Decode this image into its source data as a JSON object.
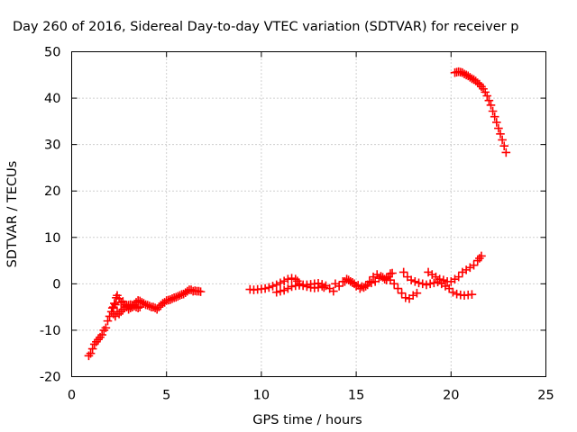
{
  "chart_data": {
    "type": "scatter",
    "title": "Day 260 of 2016, Sidereal Day-to-day VTEC variation (SDTVAR) for receiver p",
    "xlabel": "GPS time / hours",
    "ylabel": "SDTVAR / TECUs",
    "xlim": [
      0,
      25
    ],
    "ylim": [
      -20,
      50
    ],
    "x_ticks": [
      "0",
      "5",
      "10",
      "15",
      "20",
      "25"
    ],
    "y_ticks": [
      "-20",
      "-10",
      "0",
      "10",
      "20",
      "30",
      "40",
      "50"
    ],
    "grid": true,
    "marker": "plus",
    "color": "#ff0000",
    "series": [
      {
        "points": [
          [
            0.9,
            -15.5
          ],
          [
            1.0,
            -15.0
          ],
          [
            1.1,
            -14.0
          ],
          [
            1.2,
            -13.0
          ],
          [
            1.3,
            -12.5
          ],
          [
            1.4,
            -12.0
          ],
          [
            1.5,
            -11.5
          ],
          [
            1.6,
            -11.0
          ],
          [
            1.7,
            -10.0
          ],
          [
            1.8,
            -9.5
          ],
          [
            1.9,
            -8.0
          ],
          [
            2.0,
            -7.0
          ],
          [
            2.1,
            -6.0
          ],
          [
            2.15,
            -5.2
          ],
          [
            2.2,
            -5.0
          ],
          [
            2.25,
            -4.2
          ],
          [
            2.3,
            -4.5
          ],
          [
            2.35,
            -3.0
          ],
          [
            2.4,
            -2.5
          ],
          [
            2.5,
            -3.2
          ],
          [
            2.6,
            -4.0
          ],
          [
            2.7,
            -3.8
          ],
          [
            2.8,
            -4.5
          ],
          [
            2.9,
            -5.0
          ],
          [
            3.0,
            -5.5
          ],
          [
            3.1,
            -5.2
          ],
          [
            3.2,
            -5.0
          ],
          [
            3.3,
            -4.5
          ],
          [
            3.4,
            -4.0
          ],
          [
            3.5,
            -3.6
          ],
          [
            3.6,
            -3.7
          ],
          [
            3.7,
            -4.0
          ],
          [
            3.8,
            -4.2
          ],
          [
            3.9,
            -4.5
          ],
          [
            4.0,
            -4.6
          ],
          [
            4.1,
            -4.8
          ],
          [
            4.2,
            -5.0
          ],
          [
            4.3,
            -5.0
          ],
          [
            4.4,
            -5.2
          ],
          [
            4.5,
            -5.5
          ],
          [
            4.6,
            -5.0
          ],
          [
            4.7,
            -4.6
          ],
          [
            4.8,
            -4.2
          ],
          [
            4.9,
            -4.0
          ],
          [
            5.0,
            -3.6
          ],
          [
            5.1,
            -3.5
          ],
          [
            5.2,
            -3.4
          ],
          [
            5.3,
            -3.2
          ],
          [
            5.4,
            -3.0
          ],
          [
            5.5,
            -2.9
          ],
          [
            5.6,
            -2.7
          ],
          [
            5.7,
            -2.5
          ],
          [
            5.8,
            -2.3
          ],
          [
            5.9,
            -2.2
          ],
          [
            6.0,
            -1.9
          ],
          [
            6.1,
            -1.6
          ],
          [
            6.2,
            -1.3
          ],
          [
            6.3,
            -1.3
          ],
          [
            6.4,
            -1.6
          ],
          [
            6.5,
            -1.5
          ],
          [
            6.6,
            -1.6
          ],
          [
            6.7,
            -1.6
          ],
          [
            6.8,
            -1.7
          ]
        ]
      },
      {
        "points": [
          [
            2.2,
            -6.5
          ],
          [
            2.3,
            -7.0
          ],
          [
            2.4,
            -6.0
          ],
          [
            2.5,
            -6.5
          ],
          [
            2.6,
            -6.0
          ],
          [
            2.7,
            -5.5
          ],
          [
            2.8,
            -5.0
          ],
          [
            2.9,
            -4.8
          ],
          [
            3.0,
            -4.6
          ],
          [
            3.1,
            -4.5
          ],
          [
            3.2,
            -4.6
          ],
          [
            3.3,
            -4.8
          ],
          [
            3.4,
            -5.0
          ],
          [
            3.5,
            -5.2
          ],
          [
            3.6,
            -5.0
          ]
        ]
      },
      {
        "points": [
          [
            9.4,
            -1.2
          ],
          [
            9.6,
            -1.3
          ],
          [
            9.8,
            -1.2
          ],
          [
            10.0,
            -1.1
          ],
          [
            10.2,
            -1.0
          ],
          [
            10.4,
            -0.8
          ],
          [
            10.6,
            -0.5
          ],
          [
            10.8,
            -0.2
          ],
          [
            11.0,
            0.2
          ],
          [
            11.2,
            0.6
          ],
          [
            11.4,
            1.0
          ],
          [
            11.6,
            1.2
          ],
          [
            11.8,
            1.0
          ],
          [
            11.9,
            0.6
          ],
          [
            12.0,
            0.0
          ],
          [
            12.2,
            -0.4
          ],
          [
            12.4,
            -0.6
          ],
          [
            12.6,
            -0.8
          ],
          [
            12.8,
            -0.9
          ],
          [
            13.0,
            -0.8
          ],
          [
            13.2,
            -0.5
          ],
          [
            13.3,
            -0.8
          ]
        ]
      },
      {
        "points": [
          [
            10.8,
            -1.8
          ],
          [
            11.0,
            -1.6
          ],
          [
            11.2,
            -1.4
          ],
          [
            11.4,
            -1.0
          ],
          [
            11.6,
            -0.6
          ],
          [
            11.8,
            -0.4
          ],
          [
            12.0,
            -0.3
          ],
          [
            12.2,
            -0.2
          ],
          [
            12.4,
            -0.2
          ],
          [
            12.6,
            -0.1
          ],
          [
            12.8,
            0.0
          ],
          [
            13.0,
            0.1
          ],
          [
            13.2,
            -0.1
          ],
          [
            13.4,
            -0.4
          ],
          [
            13.6,
            -1.0
          ],
          [
            13.8,
            -1.6
          ]
        ]
      },
      {
        "points": [
          [
            13.9,
            0.0
          ],
          [
            14.1,
            -0.5
          ],
          [
            14.3,
            0.5
          ],
          [
            14.5,
            1.0
          ],
          [
            14.7,
            0.5
          ],
          [
            14.9,
            0.0
          ],
          [
            15.1,
            -0.3
          ],
          [
            15.3,
            -0.6
          ],
          [
            15.5,
            -0.5
          ],
          [
            15.7,
            0.5
          ],
          [
            15.9,
            1.5
          ],
          [
            16.1,
            2.0
          ],
          [
            16.3,
            1.6
          ],
          [
            16.5,
            1.0
          ],
          [
            16.6,
            0.8
          ],
          [
            16.7,
            1.5
          ],
          [
            16.8,
            2.2
          ],
          [
            16.9,
            2.3
          ]
        ]
      },
      {
        "points": [
          [
            14.4,
            0.5
          ],
          [
            14.6,
            0.8
          ],
          [
            14.8,
            0.3
          ],
          [
            15.0,
            -0.5
          ],
          [
            15.2,
            -1.0
          ],
          [
            15.4,
            -0.8
          ],
          [
            15.6,
            -0.2
          ],
          [
            15.8,
            0.2
          ],
          [
            16.0,
            0.5
          ],
          [
            16.2,
            1.2
          ],
          [
            16.4,
            1.4
          ],
          [
            16.6,
            1.2
          ],
          [
            16.8,
            0.8
          ],
          [
            17.0,
            0.0
          ],
          [
            17.2,
            -1.0
          ],
          [
            17.4,
            -2.0
          ],
          [
            17.6,
            -3.0
          ],
          [
            17.8,
            -3.2
          ],
          [
            18.0,
            -2.5
          ],
          [
            18.2,
            -2.0
          ]
        ]
      },
      {
        "points": [
          [
            17.5,
            2.5
          ],
          [
            17.7,
            1.5
          ],
          [
            17.9,
            0.8
          ],
          [
            18.1,
            0.5
          ],
          [
            18.3,
            0.2
          ],
          [
            18.5,
            0.0
          ],
          [
            18.7,
            -0.2
          ],
          [
            18.9,
            0.0
          ],
          [
            19.1,
            0.2
          ],
          [
            19.3,
            0.4
          ],
          [
            19.5,
            0.0
          ],
          [
            19.7,
            -0.5
          ],
          [
            19.9,
            -1.0
          ],
          [
            20.1,
            -1.8
          ],
          [
            20.3,
            -2.2
          ],
          [
            20.5,
            -2.4
          ],
          [
            20.7,
            -2.5
          ],
          [
            20.9,
            -2.4
          ],
          [
            21.1,
            -2.3
          ]
        ]
      },
      {
        "points": [
          [
            18.8,
            2.5
          ],
          [
            19.0,
            2.0
          ],
          [
            19.2,
            1.5
          ],
          [
            19.4,
            1.0
          ],
          [
            19.6,
            0.8
          ],
          [
            19.8,
            0.5
          ],
          [
            20.0,
            0.5
          ],
          [
            20.2,
            1.0
          ],
          [
            20.4,
            1.5
          ],
          [
            20.6,
            2.5
          ],
          [
            20.8,
            3.0
          ],
          [
            21.0,
            3.5
          ],
          [
            21.2,
            4.0
          ],
          [
            21.4,
            5.0
          ],
          [
            21.5,
            5.5
          ],
          [
            21.6,
            6.0
          ]
        ]
      },
      {
        "points": [
          [
            20.2,
            45.5
          ],
          [
            20.3,
            45.6
          ],
          [
            20.4,
            45.7
          ],
          [
            20.5,
            45.6
          ],
          [
            20.6,
            45.5
          ],
          [
            20.7,
            45.2
          ],
          [
            20.8,
            45.0
          ],
          [
            20.9,
            44.8
          ],
          [
            21.0,
            44.5
          ],
          [
            21.1,
            44.2
          ],
          [
            21.2,
            44.0
          ],
          [
            21.3,
            43.7
          ],
          [
            21.4,
            43.3
          ],
          [
            21.5,
            43.0
          ],
          [
            21.6,
            42.5
          ],
          [
            21.7,
            42.0
          ],
          [
            21.8,
            41.3
          ],
          [
            21.9,
            40.5
          ],
          [
            22.0,
            39.5
          ],
          [
            22.1,
            38.5
          ],
          [
            22.2,
            37.2
          ],
          [
            22.3,
            36.0
          ],
          [
            22.4,
            34.8
          ],
          [
            22.5,
            33.5
          ],
          [
            22.6,
            32.3
          ],
          [
            22.7,
            31.0
          ],
          [
            22.8,
            29.7
          ],
          [
            22.9,
            28.3
          ]
        ]
      }
    ]
  }
}
